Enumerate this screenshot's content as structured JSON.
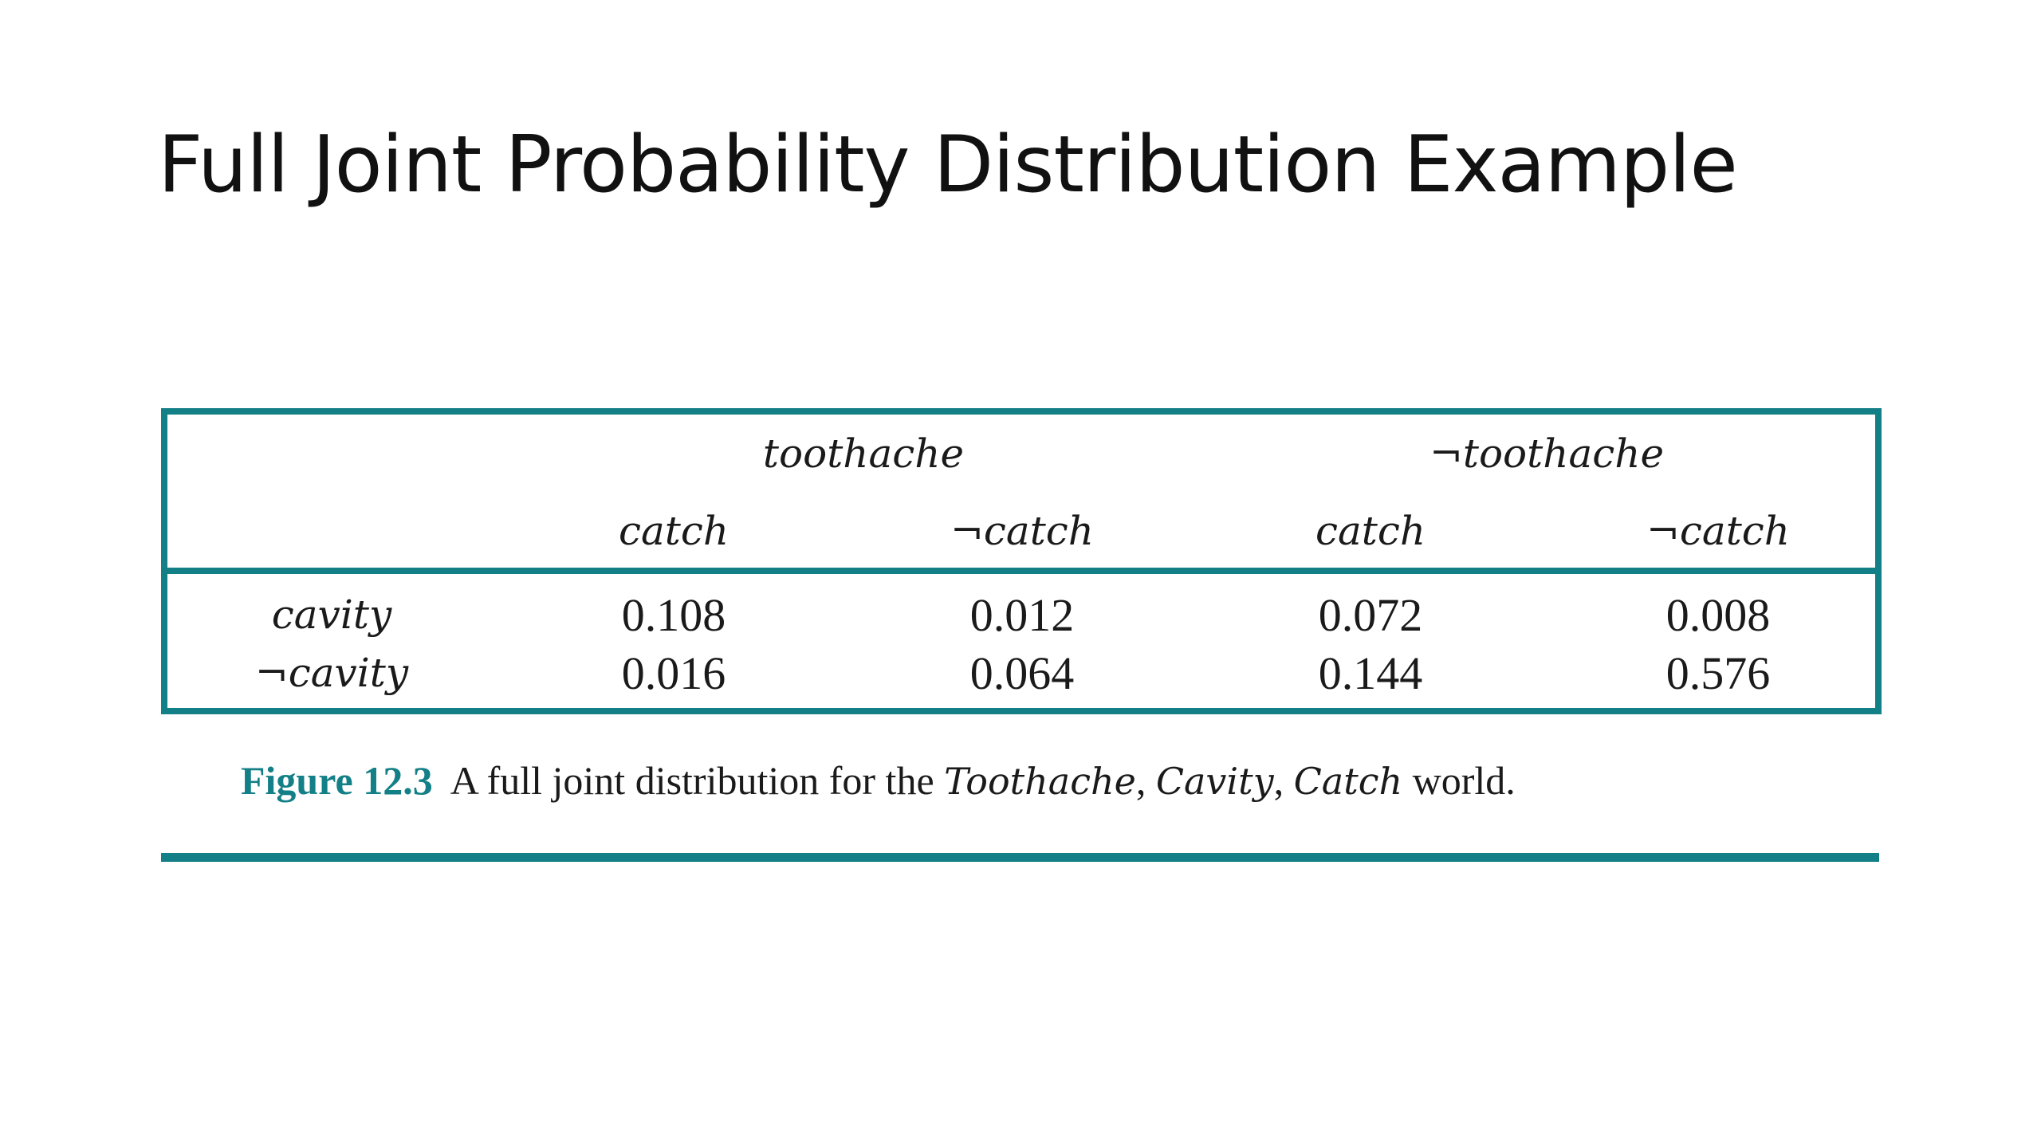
{
  "slide": {
    "title": "Full Joint Probability Distribution Example"
  },
  "table": {
    "top_headers": [
      "toothache",
      "¬toothache"
    ],
    "sub_headers": [
      "catch",
      "¬catch",
      "catch",
      "¬catch"
    ],
    "rows": [
      {
        "label": "cavity",
        "values": [
          "0.108",
          "0.012",
          "0.072",
          "0.008"
        ]
      },
      {
        "label": "¬cavity",
        "values": [
          "0.016",
          "0.064",
          "0.144",
          "0.576"
        ]
      }
    ]
  },
  "caption": {
    "figure_label": "Figure 12.3",
    "text_prefix": "A full joint distribution for the",
    "var1": "Toothache",
    "sep1": ",",
    "var2": "Cavity",
    "sep2": ",",
    "var3": "Catch",
    "text_suffix": "world."
  },
  "colors": {
    "accent": "#137f86"
  }
}
